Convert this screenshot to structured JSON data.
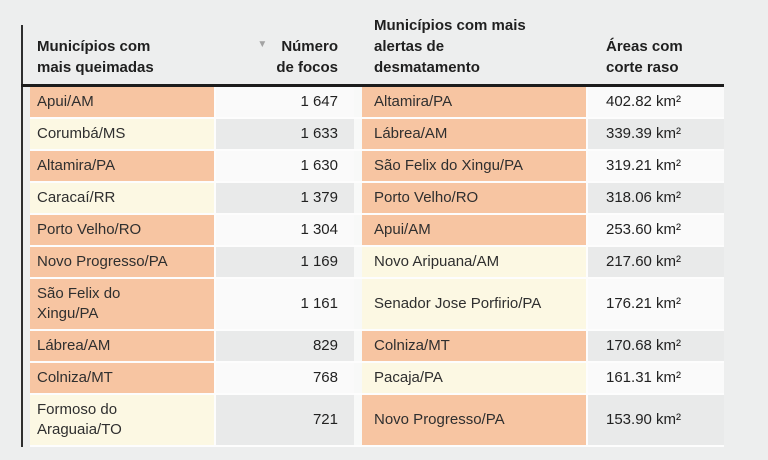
{
  "ui": {
    "left": {
      "name_header": "Municípios com\nmais queimadas",
      "value_header": "Número\nde focos",
      "sort_indicator": "▼"
    },
    "right": {
      "name_header": "Municípios com mais\nalertas de\ndesmatamento",
      "value_header": "Áreas com\ncorte raso"
    },
    "colors": {
      "highlight_row": "#f7c5a2",
      "soft_row": "#fcf8e3",
      "value_row_odd": "#fafafa",
      "value_row_even": "#e9eaea",
      "header_rule": "#1c1c1c",
      "text": "#2f2f2f"
    }
  },
  "chart_data": [
    {
      "type": "table",
      "title": "Municípios com mais queimadas",
      "columns": [
        "Municípios com mais queimadas",
        "Número de focos"
      ],
      "sorted_by": "Número de focos",
      "sort_direction": "desc",
      "rows": [
        {
          "name": "Apui/AM",
          "focos": 1647,
          "display": "1 647",
          "highlighted": true
        },
        {
          "name": "Corumbá/MS",
          "focos": 1633,
          "display": "1 633",
          "highlighted": false
        },
        {
          "name": "Altamira/PA",
          "focos": 1630,
          "display": "1 630",
          "highlighted": true
        },
        {
          "name": "Caracaí/RR",
          "focos": 1379,
          "display": "1 379",
          "highlighted": false
        },
        {
          "name": "Porto Velho/RO",
          "focos": 1304,
          "display": "1 304",
          "highlighted": true
        },
        {
          "name": "Novo Progresso/PA",
          "focos": 1169,
          "display": "1 169",
          "highlighted": true
        },
        {
          "name": "São Felix do\nXingu/PA",
          "focos": 1161,
          "display": "1 161",
          "highlighted": true
        },
        {
          "name": "Lábrea/AM",
          "focos": 829,
          "display": "829",
          "highlighted": true
        },
        {
          "name": "Colniza/MT",
          "focos": 768,
          "display": "768",
          "highlighted": true
        },
        {
          "name": "Formoso do\nAraguaia/TO",
          "focos": 721,
          "display": "721",
          "highlighted": false
        }
      ]
    },
    {
      "type": "table",
      "title": "Municípios com mais alertas de desmatamento",
      "columns": [
        "Municípios com mais alertas de desmatamento",
        "Áreas com corte raso"
      ],
      "rows": [
        {
          "name": "Altamira/PA",
          "area_km2": 402.82,
          "display": "402.82 km²",
          "highlighted": true
        },
        {
          "name": "Lábrea/AM",
          "area_km2": 339.39,
          "display": "339.39 km²",
          "highlighted": true
        },
        {
          "name": "São Felix do Xingu/PA",
          "area_km2": 319.21,
          "display": "319.21 km²",
          "highlighted": true
        },
        {
          "name": "Porto Velho/RO",
          "area_km2": 318.06,
          "display": "318.06 km²",
          "highlighted": true
        },
        {
          "name": "Apui/AM",
          "area_km2": 253.6,
          "display": "253.60 km²",
          "highlighted": true
        },
        {
          "name": "Novo Aripuana/AM",
          "area_km2": 217.6,
          "display": "217.60 km²",
          "highlighted": false
        },
        {
          "name": "Senador Jose Porfirio/PA",
          "area_km2": 176.21,
          "display": "176.21 km²",
          "highlighted": false
        },
        {
          "name": "Colniza/MT",
          "area_km2": 170.68,
          "display": "170.68 km²",
          "highlighted": true
        },
        {
          "name": "Pacaja/PA",
          "area_km2": 161.31,
          "display": "161.31 km²",
          "highlighted": false
        },
        {
          "name": "Novo Progresso/PA",
          "area_km2": 153.9,
          "display": "153.90 km²",
          "highlighted": true
        }
      ]
    }
  ]
}
